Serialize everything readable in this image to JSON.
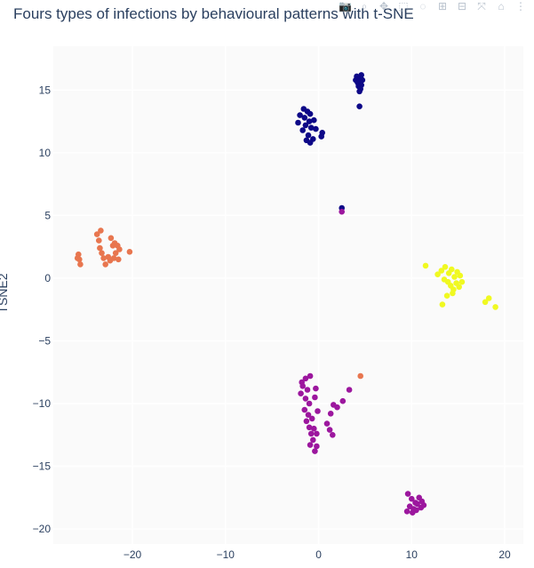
{
  "title": "Fours types of infections by behavioural patterns with t-SNE",
  "modebar": {
    "icons": [
      "camera-icon",
      "zoom-icon",
      "pan-icon",
      "box-select-icon",
      "lasso-icon",
      "zoom-in-icon",
      "zoom-out-icon",
      "autoscale-icon",
      "reset-axes-icon",
      "spike-lines-icon"
    ]
  },
  "chart_data": {
    "type": "scatter",
    "title": "Fours types of infections by behavioural patterns with t-SNE",
    "xlabel": "",
    "ylabel": "TSNE2",
    "xlim": [
      -28.5,
      22
    ],
    "ylim": [
      -21.2,
      18.5
    ],
    "xticks": [
      -20,
      -10,
      0,
      10,
      20
    ],
    "yticks": [
      -20,
      -15,
      -10,
      -5,
      0,
      5,
      10,
      15
    ],
    "xtick_labels": [
      "−20",
      "−10",
      "0",
      "10",
      "20"
    ],
    "ytick_labels": [
      "−20",
      "−15",
      "−10",
      "−5",
      "0",
      "5",
      "10",
      "15"
    ],
    "grid": true,
    "background": "#fafafa",
    "series": [
      {
        "color": "#0d0887",
        "points": [
          [
            4.1,
            16.1
          ],
          [
            4.3,
            16.0
          ],
          [
            4.5,
            15.9
          ],
          [
            4.0,
            15.8
          ],
          [
            4.6,
            16.2
          ],
          [
            4.2,
            15.6
          ],
          [
            4.4,
            15.7
          ],
          [
            4.7,
            15.8
          ],
          [
            4.3,
            15.3
          ],
          [
            4.5,
            15.1
          ],
          [
            4.4,
            14.9
          ],
          [
            4.6,
            15.4
          ],
          [
            4.4,
            13.7
          ],
          [
            -1.6,
            13.5
          ],
          [
            -1.2,
            13.3
          ],
          [
            -2.0,
            13.0
          ],
          [
            -0.9,
            13.1
          ],
          [
            -1.5,
            12.8
          ],
          [
            -1.0,
            12.5
          ],
          [
            -2.2,
            12.4
          ],
          [
            -0.5,
            12.6
          ],
          [
            -1.4,
            12.2
          ],
          [
            -0.8,
            12.0
          ],
          [
            -1.7,
            11.8
          ],
          [
            -0.3,
            11.9
          ],
          [
            -1.1,
            11.4
          ],
          [
            0.3,
            11.3
          ],
          [
            -0.6,
            11.1
          ],
          [
            -0.9,
            10.8
          ],
          [
            0.4,
            11.6
          ],
          [
            -1.3,
            11.0
          ],
          [
            2.5,
            5.6
          ]
        ]
      },
      {
        "color": "#e8764f",
        "points": [
          [
            -25.8,
            1.9
          ],
          [
            -25.7,
            1.5
          ],
          [
            -25.6,
            1.1
          ],
          [
            -25.9,
            1.6
          ],
          [
            -23.8,
            3.5
          ],
          [
            -23.4,
            3.8
          ],
          [
            -23.6,
            3.0
          ],
          [
            -23.5,
            2.4
          ],
          [
            -23.3,
            2.0
          ],
          [
            -23.1,
            1.6
          ],
          [
            -22.9,
            1.1
          ],
          [
            -22.6,
            1.7
          ],
          [
            -22.4,
            1.4
          ],
          [
            -22.0,
            1.6
          ],
          [
            -21.8,
            2.0
          ],
          [
            -21.4,
            2.3
          ],
          [
            -21.5,
            1.5
          ],
          [
            -21.9,
            2.8
          ],
          [
            -22.3,
            3.2
          ],
          [
            -22.1,
            2.6
          ],
          [
            -21.6,
            2.6
          ],
          [
            -20.3,
            2.1
          ],
          [
            4.5,
            -7.8
          ]
        ]
      },
      {
        "color": "#9c179e",
        "points": [
          [
            2.5,
            5.3
          ],
          [
            -1.8,
            -8.3
          ],
          [
            -1.4,
            -8.0
          ],
          [
            -0.9,
            -7.8
          ],
          [
            -1.7,
            -8.6
          ],
          [
            -1.2,
            -8.9
          ],
          [
            -1.9,
            -9.2
          ],
          [
            -1.4,
            -9.6
          ],
          [
            -1.0,
            -10.0
          ],
          [
            -1.5,
            -10.5
          ],
          [
            -1.1,
            -10.9
          ],
          [
            -1.3,
            -11.4
          ],
          [
            -1.0,
            -11.9
          ],
          [
            -0.8,
            -12.4
          ],
          [
            -0.6,
            -12.9
          ],
          [
            -0.9,
            -13.3
          ],
          [
            -0.4,
            -13.8
          ],
          [
            -0.2,
            -13.4
          ],
          [
            -0.5,
            -12.0
          ],
          [
            -0.7,
            -11.2
          ],
          [
            -0.4,
            -9.5
          ],
          [
            -0.3,
            -8.8
          ],
          [
            -0.1,
            -10.6
          ],
          [
            -0.2,
            -12.4
          ],
          [
            0.9,
            -11.6
          ],
          [
            1.3,
            -10.8
          ],
          [
            1.6,
            -10.1
          ],
          [
            2.0,
            -10.3
          ],
          [
            1.2,
            -12.1
          ],
          [
            1.5,
            -12.5
          ],
          [
            2.6,
            -9.8
          ],
          [
            3.3,
            -8.9
          ],
          [
            9.6,
            -17.2
          ],
          [
            10.0,
            -17.6
          ],
          [
            10.4,
            -17.9
          ],
          [
            10.8,
            -17.5
          ],
          [
            11.1,
            -17.8
          ],
          [
            9.8,
            -18.2
          ],
          [
            10.2,
            -18.4
          ],
          [
            10.6,
            -18.0
          ],
          [
            11.0,
            -18.3
          ],
          [
            9.5,
            -18.6
          ],
          [
            10.1,
            -18.7
          ],
          [
            10.5,
            -18.5
          ],
          [
            11.3,
            -18.1
          ]
        ]
      },
      {
        "color": "#f0f921",
        "points": [
          [
            11.5,
            1.0
          ],
          [
            12.8,
            0.3
          ],
          [
            13.2,
            0.6
          ],
          [
            13.6,
            0.9
          ],
          [
            14.0,
            0.4
          ],
          [
            14.3,
            0.7
          ],
          [
            14.6,
            0.1
          ],
          [
            14.9,
            0.5
          ],
          [
            15.2,
            0.2
          ],
          [
            13.9,
            -0.3
          ],
          [
            14.2,
            -0.6
          ],
          [
            14.5,
            -0.9
          ],
          [
            14.8,
            -0.4
          ],
          [
            15.1,
            -0.7
          ],
          [
            13.5,
            -0.1
          ],
          [
            14.4,
            -1.2
          ],
          [
            13.8,
            -1.4
          ],
          [
            13.3,
            -2.1
          ],
          [
            15.4,
            -0.3
          ],
          [
            17.9,
            -1.9
          ],
          [
            18.3,
            -1.6
          ],
          [
            19.0,
            -2.3
          ]
        ]
      }
    ]
  }
}
